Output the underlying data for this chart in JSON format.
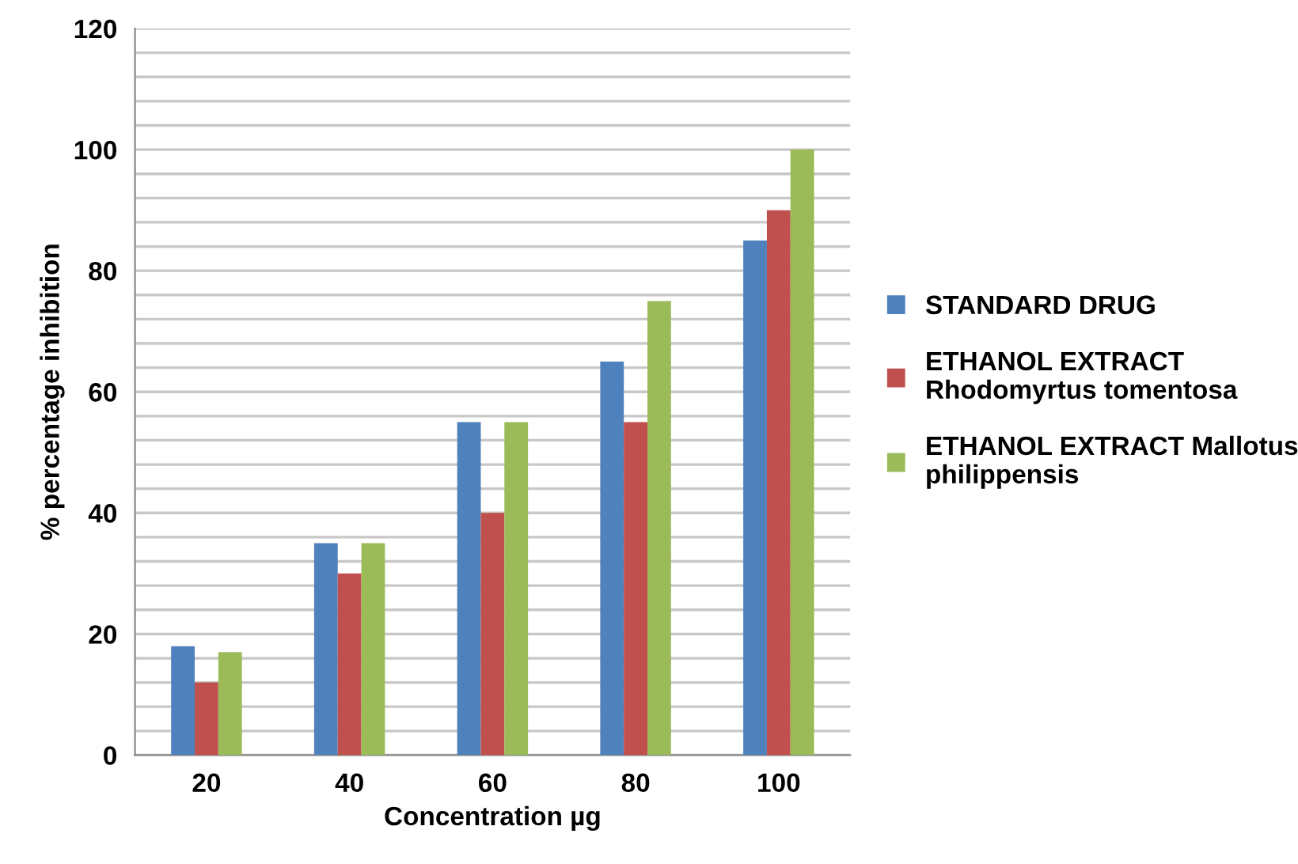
{
  "chart_data": {
    "type": "bar",
    "xlabel": "Concentration µg",
    "ylabel": "% percentage inhibition",
    "categories": [
      "20",
      "40",
      "60",
      "80",
      "100"
    ],
    "series": [
      {
        "name": "STANDARD DRUG",
        "color": "#4f81bd",
        "values": [
          18,
          35,
          55,
          65,
          85
        ]
      },
      {
        "name": "ETHANOL EXTRACT\nRhodomyrtus tomentosa",
        "color": "#c0504d",
        "values": [
          12,
          30,
          40,
          55,
          90
        ]
      },
      {
        "name": "ETHANOL EXTRACT Mallotus\nphilippensis",
        "color": "#9bbb59",
        "values": [
          17,
          35,
          55,
          75,
          100
        ]
      }
    ],
    "ylim": [
      0,
      120
    ],
    "yticks": [
      0,
      {
        "value": 4,
        "label": null
      },
      {
        "value": 8,
        "label": null
      },
      {
        "value": 12,
        "label": null
      },
      {
        "value": 16,
        "label": null
      },
      20,
      {
        "value": 24,
        "label": null
      },
      {
        "value": 28,
        "label": null
      },
      {
        "value": 32,
        "label": null
      },
      {
        "value": 36,
        "label": null
      },
      40,
      {
        "value": 44,
        "label": null
      },
      {
        "value": 48,
        "label": null
      },
      {
        "value": 52,
        "label": null
      },
      {
        "value": 56,
        "label": null
      },
      60,
      {
        "value": 64,
        "label": null
      },
      {
        "value": 68,
        "label": null
      },
      {
        "value": 72,
        "label": null
      },
      {
        "value": 76,
        "label": null
      },
      80,
      {
        "value": 84,
        "label": null
      },
      {
        "value": 88,
        "label": null
      },
      {
        "value": 92,
        "label": null
      },
      {
        "value": 96,
        "label": null
      },
      100,
      {
        "value": 104,
        "label": null
      },
      {
        "value": 108,
        "label": null
      },
      {
        "value": 112,
        "label": null
      },
      {
        "value": 116,
        "label": null
      },
      120
    ],
    "grid": "y",
    "legend": "right"
  }
}
